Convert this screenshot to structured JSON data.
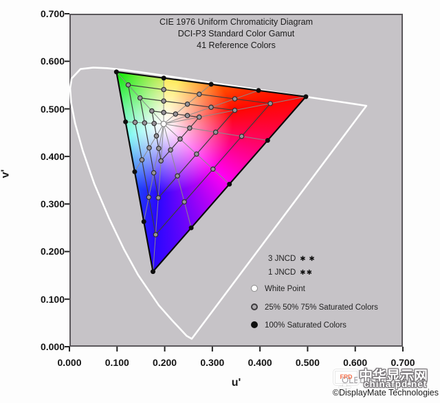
{
  "chart": {
    "title_lines": [
      "CIE 1976 Uniform Chromaticity Diagram",
      "DCI-P3 Standard Color Gamut",
      "41 Reference Colors"
    ],
    "xlabel": "u'",
    "ylabel": "v'",
    "x_tick_labels": [
      "0.000",
      "0.100",
      "0.200",
      "0.300",
      "0.400",
      "0.500",
      "0.600",
      "0.700"
    ],
    "y_tick_labels": [
      "0.700",
      "0.600",
      "0.500",
      "0.400",
      "0.300",
      "0.200",
      "0.100",
      "0.000"
    ],
    "plot_bg_color": "#c6c3c7",
    "locus_color": "#ffffff"
  },
  "chart_data": {
    "type": "scatter",
    "title": "CIE 1976 Uniform Chromaticity Diagram",
    "subtitle": [
      "DCI-P3 Standard Color Gamut",
      "41 Reference Colors"
    ],
    "xlabel": "u'",
    "ylabel": "v'",
    "xlim": [
      0,
      0.7
    ],
    "ylim": [
      0,
      0.7
    ],
    "grid": false,
    "gamut": {
      "name": "DCI-P3",
      "green": [
        0.0986,
        0.5777
      ],
      "red": [
        0.4964,
        0.5256
      ],
      "blue": [
        0.1754,
        0.1579
      ]
    },
    "white_point": [
      0.1978,
      0.4683
    ],
    "saturation_levels": [
      0.25,
      0.5,
      0.75,
      1.0
    ],
    "edge_fractions": [
      0,
      0.25,
      0.5,
      0.75
    ],
    "spectral_locus": [
      [
        0.2568,
        0.0166
      ],
      [
        0.2461,
        0.0226
      ],
      [
        0.2347,
        0.035
      ],
      [
        0.2161,
        0.0549
      ],
      [
        0.1877,
        0.0871
      ],
      [
        0.1441,
        0.151
      ],
      [
        0.1147,
        0.2044
      ],
      [
        0.0828,
        0.2708
      ],
      [
        0.0521,
        0.3427
      ],
      [
        0.0282,
        0.4117
      ],
      [
        0.0119,
        0.4698
      ],
      [
        0.0035,
        0.5132
      ],
      [
        0.0014,
        0.5432
      ],
      [
        0.0046,
        0.5639
      ],
      [
        0.0231,
        0.5836
      ],
      [
        0.0501,
        0.5868
      ],
      [
        0.0792,
        0.5856
      ],
      [
        0.1127,
        0.5821
      ],
      [
        0.1531,
        0.5766
      ],
      [
        0.2026,
        0.5694
      ],
      [
        0.2623,
        0.5604
      ],
      [
        0.3315,
        0.5501
      ],
      [
        0.4035,
        0.5393
      ],
      [
        0.4692,
        0.5296
      ],
      [
        0.5203,
        0.5219
      ],
      [
        0.5565,
        0.5165
      ],
      [
        0.6005,
        0.5099
      ],
      [
        0.6234,
        0.5065
      ]
    ],
    "marker_colors": {
      "white_point": "#ffffff",
      "partial_saturation": "#98949a",
      "full_saturation": "#0d0d0d"
    }
  },
  "legend": {
    "jncd3": {
      "label": "3 JNCD",
      "stars": "✱ ✱"
    },
    "jncd1": {
      "label": "1 JNCD",
      "stars": "✱✱"
    },
    "items": [
      {
        "marker": "white",
        "label": "White Point"
      },
      {
        "marker": "gray",
        "label": "25% 50% 75% Saturated Colors"
      },
      {
        "marker": "black",
        "label": "100% Saturated Colors"
      }
    ]
  },
  "footer": {
    "copyright": "©DisplayMate Technologies",
    "obscured_caption": "OLED Chromaticity"
  },
  "watermark": {
    "icon_label": "FPD",
    "title": "中华显示网",
    "domain": "chinafpd.net"
  }
}
